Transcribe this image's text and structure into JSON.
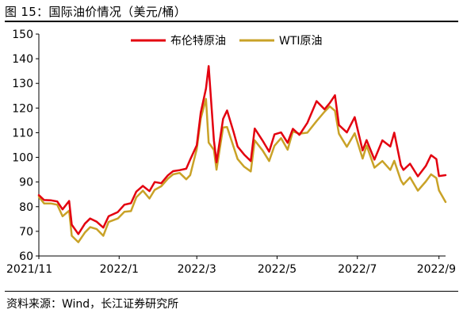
{
  "figure": {
    "title": "图 15：国际油价情况（美元/桶）",
    "source": "资料来源：Wind，长江证券研究所"
  },
  "chart_data": {
    "type": "line",
    "title": "",
    "xlabel": "",
    "ylabel": "",
    "ylim": [
      60,
      150
    ],
    "yticks": [
      60,
      70,
      80,
      90,
      100,
      110,
      120,
      130,
      140,
      150
    ],
    "xlim": [
      "2021-11-01",
      "2022-09-06"
    ],
    "xticks": [
      {
        "date": "2021-11-01",
        "label": "2021/11"
      },
      {
        "date": "2022-01-01",
        "label": "2022/1"
      },
      {
        "date": "2022-03-01",
        "label": "2022/3"
      },
      {
        "date": "2022-05-01",
        "label": "2022/5"
      },
      {
        "date": "2022-07-01",
        "label": "2022/7"
      },
      {
        "date": "2022-09-01",
        "label": "2022/9"
      }
    ],
    "legend_position": "top",
    "grid": false,
    "series": [
      {
        "name": "布伦特原油",
        "color": "#e3000f",
        "points": [
          [
            "2021-11-01",
            84.7
          ],
          [
            "2021-11-05",
            82.7
          ],
          [
            "2021-11-10",
            82.6
          ],
          [
            "2021-11-15",
            82.1
          ],
          [
            "2021-11-19",
            78.9
          ],
          [
            "2021-11-24",
            82.3
          ],
          [
            "2021-11-26",
            72.7
          ],
          [
            "2021-12-01",
            68.9
          ],
          [
            "2021-12-06",
            73.1
          ],
          [
            "2021-12-10",
            75.2
          ],
          [
            "2021-12-15",
            73.9
          ],
          [
            "2021-12-20",
            71.5
          ],
          [
            "2021-12-24",
            76.1
          ],
          [
            "2021-12-31",
            77.8
          ],
          [
            "2022-01-05",
            80.8
          ],
          [
            "2022-01-10",
            81.4
          ],
          [
            "2022-01-14",
            86.1
          ],
          [
            "2022-01-19",
            88.4
          ],
          [
            "2022-01-24",
            86.3
          ],
          [
            "2022-01-28",
            90.0
          ],
          [
            "2022-02-02",
            89.5
          ],
          [
            "2022-02-07",
            92.7
          ],
          [
            "2022-02-11",
            94.4
          ],
          [
            "2022-02-16",
            94.8
          ],
          [
            "2022-02-21",
            95.4
          ],
          [
            "2022-02-24",
            99.1
          ],
          [
            "2022-03-01",
            104.9
          ],
          [
            "2022-03-04",
            118.1
          ],
          [
            "2022-03-08",
            127.9
          ],
          [
            "2022-03-10",
            137.0
          ],
          [
            "2022-03-14",
            106.9
          ],
          [
            "2022-03-16",
            98.0
          ],
          [
            "2022-03-21",
            115.6
          ],
          [
            "2022-03-24",
            119.0
          ],
          [
            "2022-03-29",
            110.2
          ],
          [
            "2022-04-01",
            104.4
          ],
          [
            "2022-04-06",
            101.1
          ],
          [
            "2022-04-11",
            98.5
          ],
          [
            "2022-04-14",
            111.7
          ],
          [
            "2022-04-20",
            106.8
          ],
          [
            "2022-04-25",
            102.3
          ],
          [
            "2022-04-29",
            109.3
          ],
          [
            "2022-05-04",
            110.1
          ],
          [
            "2022-05-09",
            105.9
          ],
          [
            "2022-05-13",
            111.6
          ],
          [
            "2022-05-18",
            109.1
          ],
          [
            "2022-05-24",
            114.0
          ],
          [
            "2022-05-31",
            122.8
          ],
          [
            "2022-06-06",
            119.5
          ],
          [
            "2022-06-10",
            122.0
          ],
          [
            "2022-06-14",
            125.2
          ],
          [
            "2022-06-17",
            113.1
          ],
          [
            "2022-06-23",
            110.1
          ],
          [
            "2022-06-29",
            116.3
          ],
          [
            "2022-07-05",
            102.8
          ],
          [
            "2022-07-08",
            107.0
          ],
          [
            "2022-07-14",
            99.1
          ],
          [
            "2022-07-20",
            106.9
          ],
          [
            "2022-07-26",
            104.4
          ],
          [
            "2022-07-29",
            110.0
          ],
          [
            "2022-08-03",
            96.8
          ],
          [
            "2022-08-05",
            94.9
          ],
          [
            "2022-08-10",
            97.4
          ],
          [
            "2022-08-16",
            92.3
          ],
          [
            "2022-08-22",
            96.5
          ],
          [
            "2022-08-26",
            100.9
          ],
          [
            "2022-08-30",
            99.3
          ],
          [
            "2022-09-01",
            92.4
          ],
          [
            "2022-09-06",
            92.8
          ]
        ]
      },
      {
        "name": "WTI原油",
        "color": "#c9a227",
        "points": [
          [
            "2021-11-01",
            84.0
          ],
          [
            "2021-11-05",
            81.3
          ],
          [
            "2021-11-10",
            81.3
          ],
          [
            "2021-11-15",
            80.8
          ],
          [
            "2021-11-19",
            76.1
          ],
          [
            "2021-11-24",
            78.4
          ],
          [
            "2021-11-26",
            68.2
          ],
          [
            "2021-12-01",
            65.6
          ],
          [
            "2021-12-06",
            69.5
          ],
          [
            "2021-12-10",
            71.7
          ],
          [
            "2021-12-15",
            70.9
          ],
          [
            "2021-12-20",
            68.2
          ],
          [
            "2021-12-24",
            73.8
          ],
          [
            "2021-12-31",
            75.2
          ],
          [
            "2022-01-05",
            77.9
          ],
          [
            "2022-01-10",
            78.2
          ],
          [
            "2022-01-14",
            83.8
          ],
          [
            "2022-01-19",
            86.5
          ],
          [
            "2022-01-24",
            83.3
          ],
          [
            "2022-01-28",
            86.8
          ],
          [
            "2022-02-02",
            88.3
          ],
          [
            "2022-02-07",
            91.3
          ],
          [
            "2022-02-11",
            93.1
          ],
          [
            "2022-02-16",
            93.7
          ],
          [
            "2022-02-21",
            91.1
          ],
          [
            "2022-02-24",
            92.8
          ],
          [
            "2022-03-01",
            103.4
          ],
          [
            "2022-03-04",
            115.7
          ],
          [
            "2022-03-08",
            123.7
          ],
          [
            "2022-03-10",
            106.0
          ],
          [
            "2022-03-14",
            103.0
          ],
          [
            "2022-03-16",
            95.0
          ],
          [
            "2022-03-21",
            112.1
          ],
          [
            "2022-03-24",
            112.3
          ],
          [
            "2022-03-29",
            104.2
          ],
          [
            "2022-04-01",
            99.3
          ],
          [
            "2022-04-06",
            96.2
          ],
          [
            "2022-04-11",
            94.3
          ],
          [
            "2022-04-14",
            106.9
          ],
          [
            "2022-04-20",
            102.8
          ],
          [
            "2022-04-25",
            98.5
          ],
          [
            "2022-04-29",
            104.7
          ],
          [
            "2022-05-04",
            107.8
          ],
          [
            "2022-05-09",
            103.1
          ],
          [
            "2022-05-13",
            110.5
          ],
          [
            "2022-05-18",
            109.6
          ],
          [
            "2022-05-24",
            110.0
          ],
          [
            "2022-05-31",
            114.7
          ],
          [
            "2022-06-06",
            118.5
          ],
          [
            "2022-06-10",
            120.7
          ],
          [
            "2022-06-14",
            118.9
          ],
          [
            "2022-06-17",
            109.6
          ],
          [
            "2022-06-23",
            104.3
          ],
          [
            "2022-06-29",
            109.8
          ],
          [
            "2022-07-05",
            99.5
          ],
          [
            "2022-07-08",
            104.8
          ],
          [
            "2022-07-14",
            95.8
          ],
          [
            "2022-07-20",
            98.5
          ],
          [
            "2022-07-26",
            94.9
          ],
          [
            "2022-07-29",
            98.6
          ],
          [
            "2022-08-03",
            90.7
          ],
          [
            "2022-08-05",
            89.0
          ],
          [
            "2022-08-10",
            91.9
          ],
          [
            "2022-08-16",
            86.5
          ],
          [
            "2022-08-22",
            90.2
          ],
          [
            "2022-08-26",
            93.1
          ],
          [
            "2022-08-30",
            91.6
          ],
          [
            "2022-09-01",
            86.6
          ],
          [
            "2022-09-06",
            81.9
          ]
        ]
      }
    ]
  }
}
